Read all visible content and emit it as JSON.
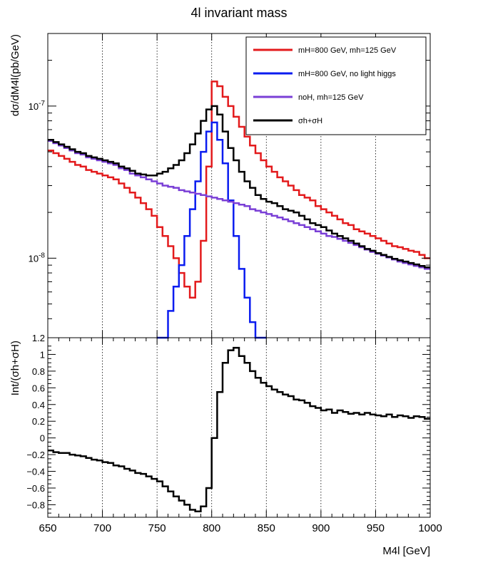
{
  "chart_data": [
    {
      "type": "line",
      "title": "4l invariant mass",
      "ylabel": "dσ/dM4l(pb/GeV)",
      "yscale": "log",
      "xlim": [
        650,
        1000
      ],
      "ylim": [
        3e-09,
        3e-07
      ],
      "grid": "vertical-dotted",
      "legend_position": "top-right",
      "ytick_labels": [
        "10^-7",
        "10^-8"
      ],
      "x": [
        650,
        655,
        660,
        665,
        670,
        675,
        680,
        685,
        690,
        695,
        700,
        705,
        710,
        715,
        720,
        725,
        730,
        735,
        740,
        745,
        750,
        755,
        760,
        765,
        770,
        775,
        780,
        785,
        790,
        795,
        800,
        805,
        810,
        815,
        820,
        825,
        830,
        835,
        840,
        845,
        850,
        855,
        860,
        865,
        870,
        875,
        880,
        885,
        890,
        895,
        900,
        905,
        910,
        915,
        920,
        925,
        930,
        935,
        940,
        945,
        950,
        955,
        960,
        965,
        970,
        975,
        980,
        985,
        990,
        995,
        1000
      ],
      "series": [
        {
          "name": "mH=800 GeV, mh=125 GeV",
          "color": "#e31a1c",
          "values": [
            5.1e-08,
            4.9e-08,
            4.7e-08,
            4.5e-08,
            4.3e-08,
            4.1e-08,
            4e-08,
            3.8e-08,
            3.7e-08,
            3.6e-08,
            3.5e-08,
            3.4e-08,
            3.3e-08,
            3.1e-08,
            2.9e-08,
            2.7e-08,
            2.5e-08,
            2.3e-08,
            2.1e-08,
            1.9e-08,
            1.6e-08,
            1.4e-08,
            1.2e-08,
            1e-08,
            8e-09,
            6.5e-09,
            5.5e-09,
            7e-09,
            1.3e-08,
            4e-08,
            1.45e-07,
            1.35e-07,
            1.15e-07,
            1e-07,
            8.5e-08,
            7.3e-08,
            6.3e-08,
            5.5e-08,
            4.9e-08,
            4.4e-08,
            4e-08,
            3.7e-08,
            3.4e-08,
            3.2e-08,
            3e-08,
            2.8e-08,
            2.6e-08,
            2.5e-08,
            2.4e-08,
            2.2e-08,
            2.1e-08,
            2e-08,
            1.9e-08,
            1.8e-08,
            1.7e-08,
            1.65e-08,
            1.55e-08,
            1.5e-08,
            1.45e-08,
            1.4e-08,
            1.35e-08,
            1.3e-08,
            1.25e-08,
            1.2e-08,
            1.18e-08,
            1.15e-08,
            1.12e-08,
            1.1e-08,
            1.05e-08,
            1e-08,
            1.05e-08
          ]
        },
        {
          "name": "mH=800 GeV, no light higgs",
          "color": "#0a1cf0",
          "values": [
            null,
            null,
            null,
            null,
            null,
            null,
            null,
            null,
            null,
            null,
            null,
            null,
            null,
            null,
            null,
            null,
            null,
            null,
            null,
            null,
            2e-09,
            3e-09,
            4.5e-09,
            6.5e-09,
            9e-09,
            1.4e-08,
            2.1e-08,
            3.2e-08,
            5e-08,
            6.8e-08,
            7.8e-08,
            6e-08,
            4.2e-08,
            2.4e-08,
            1.4e-08,
            8.5e-09,
            5.5e-09,
            3.8e-09,
            2.9e-09,
            2.1e-09,
            null,
            null,
            null,
            null,
            null,
            null,
            null,
            null,
            null,
            null,
            null,
            null,
            null,
            null,
            null,
            null,
            null,
            null,
            null,
            null,
            null,
            null,
            null,
            null,
            null,
            null,
            null,
            null,
            null,
            null,
            null
          ]
        },
        {
          "name": "noH, mh=125 GeV",
          "color": "#7a3fd6",
          "values": [
            5.9e-08,
            5.7e-08,
            5.5e-08,
            5.3e-08,
            5.1e-08,
            4.9e-08,
            4.8e-08,
            4.6e-08,
            4.5e-08,
            4.4e-08,
            4.3e-08,
            4.2e-08,
            4.1e-08,
            3.9e-08,
            3.8e-08,
            3.6e-08,
            3.5e-08,
            3.4e-08,
            3.3e-08,
            3.2e-08,
            3.1e-08,
            3e-08,
            2.95e-08,
            2.9e-08,
            2.8e-08,
            2.75e-08,
            2.7e-08,
            2.65e-08,
            2.6e-08,
            2.55e-08,
            2.5e-08,
            2.45e-08,
            2.4e-08,
            2.35e-08,
            2.3e-08,
            2.25e-08,
            2.2e-08,
            2.1e-08,
            2.05e-08,
            2e-08,
            1.95e-08,
            1.9e-08,
            1.85e-08,
            1.8e-08,
            1.75e-08,
            1.7e-08,
            1.65e-08,
            1.6e-08,
            1.55e-08,
            1.5e-08,
            1.45e-08,
            1.4e-08,
            1.38e-08,
            1.34e-08,
            1.3e-08,
            1.26e-08,
            1.22e-08,
            1.18e-08,
            1.14e-08,
            1.1e-08,
            1.07e-08,
            1.04e-08,
            1.01e-08,
            9.8e-09,
            9.5e-09,
            9.3e-09,
            9.1e-09,
            8.9e-09,
            8.7e-09,
            8.5e-09,
            8.4e-09
          ]
        },
        {
          "name": "σh+σH",
          "color": "#000000",
          "values": [
            6e-08,
            5.8e-08,
            5.6e-08,
            5.4e-08,
            5.2e-08,
            5e-08,
            4.9e-08,
            4.7e-08,
            4.6e-08,
            4.5e-08,
            4.4e-08,
            4.3e-08,
            4.2e-08,
            4e-08,
            3.9e-08,
            3.75e-08,
            3.6e-08,
            3.55e-08,
            3.5e-08,
            3.5e-08,
            3.6e-08,
            3.7e-08,
            3.9e-08,
            4.1e-08,
            4.4e-08,
            4.9e-08,
            5.6e-08,
            6.6e-08,
            8e-08,
            9.5e-08,
            1e-07,
            8.8e-08,
            6.8e-08,
            5.3e-08,
            4.4e-08,
            3.7e-08,
            3.2e-08,
            2.9e-08,
            2.6e-08,
            2.45e-08,
            2.35e-08,
            2.3e-08,
            2.2e-08,
            2.1e-08,
            2.05e-08,
            2e-08,
            1.9e-08,
            1.8e-08,
            1.7e-08,
            1.65e-08,
            1.6e-08,
            1.52e-08,
            1.45e-08,
            1.4e-08,
            1.35e-08,
            1.3e-08,
            1.25e-08,
            1.2e-08,
            1.15e-08,
            1.12e-08,
            1.08e-08,
            1.05e-08,
            1.02e-08,
            9.9e-09,
            9.7e-09,
            9.5e-09,
            9.3e-09,
            9.1e-09,
            8.9e-09,
            8.7e-09,
            8.6e-09
          ]
        }
      ]
    },
    {
      "type": "line",
      "xlabel": "M4l [GeV]",
      "ylabel": "Int/(σh+σH)",
      "xlim": [
        650,
        1000
      ],
      "ylim": [
        -0.95,
        1.2
      ],
      "grid": "vertical-dotted",
      "xticks": [
        650,
        700,
        750,
        800,
        850,
        900,
        950,
        1000
      ],
      "yticks": [
        -0.8,
        -0.6,
        -0.4,
        -0.2,
        0,
        0.2,
        0.4,
        0.6,
        0.8,
        1
      ],
      "ytick_labels": [
        "−0.8",
        "−0.6",
        "−0.4",
        "−0.2",
        "0",
        "0.2",
        "0.4",
        "0.6",
        "0.8",
        "1"
      ],
      "ytick_partial_top_label": "1.2",
      "x": [
        650,
        655,
        660,
        665,
        670,
        675,
        680,
        685,
        690,
        695,
        700,
        705,
        710,
        715,
        720,
        725,
        730,
        735,
        740,
        745,
        750,
        755,
        760,
        765,
        770,
        775,
        780,
        785,
        790,
        795,
        800,
        805,
        810,
        815,
        820,
        825,
        830,
        835,
        840,
        845,
        850,
        855,
        860,
        865,
        870,
        875,
        880,
        885,
        890,
        895,
        900,
        905,
        910,
        915,
        920,
        925,
        930,
        935,
        940,
        945,
        950,
        955,
        960,
        965,
        970,
        975,
        980,
        985,
        990,
        995,
        1000
      ],
      "series": [
        {
          "color": "#000000",
          "values": [
            -0.15,
            -0.17,
            -0.18,
            -0.18,
            -0.2,
            -0.21,
            -0.22,
            -0.24,
            -0.26,
            -0.27,
            -0.29,
            -0.3,
            -0.33,
            -0.34,
            -0.37,
            -0.39,
            -0.42,
            -0.43,
            -0.46,
            -0.49,
            -0.52,
            -0.58,
            -0.64,
            -0.7,
            -0.75,
            -0.8,
            -0.86,
            -0.88,
            -0.82,
            -0.6,
            0.0,
            0.55,
            0.9,
            1.05,
            1.08,
            0.98,
            0.9,
            0.8,
            0.72,
            0.66,
            0.62,
            0.58,
            0.55,
            0.52,
            0.5,
            0.46,
            0.45,
            0.42,
            0.38,
            0.36,
            0.33,
            0.34,
            0.3,
            0.33,
            0.31,
            0.29,
            0.3,
            0.28,
            0.3,
            0.28,
            0.27,
            0.26,
            0.28,
            0.25,
            0.27,
            0.26,
            0.24,
            0.26,
            0.25,
            0.23,
            0.21
          ]
        }
      ]
    }
  ]
}
